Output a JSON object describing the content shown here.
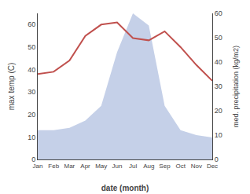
{
  "chart_data": {
    "type": "line",
    "categories": [
      "Jan",
      "Feb",
      "Mar",
      "Apr",
      "May",
      "Jun",
      "Jul",
      "Aug",
      "Sep",
      "Oct",
      "Nov",
      "Dec"
    ],
    "xlabel": "date (month)",
    "ylabel": "max temp (C)",
    "y2label": "med. precipitation (kg/m2)",
    "series": [
      {
        "type": "area",
        "axis": "y2",
        "color": "#c5d0e8",
        "values": [
          12,
          12,
          13,
          16,
          22,
          44,
          60,
          55,
          22,
          12,
          10,
          9
        ]
      },
      {
        "type": "line",
        "color": "#c0504d",
        "values": [
          38,
          39,
          44,
          55,
          60,
          61,
          54,
          53,
          57,
          50,
          42,
          35
        ]
      }
    ],
    "ylim": [
      0,
      65
    ],
    "yticks": [
      0,
      10,
      20,
      30,
      40,
      50,
      60
    ],
    "y2lim": [
      0,
      60
    ],
    "y2ticks": [
      0,
      10,
      20,
      30,
      40,
      50,
      60
    ],
    "grid": false
  }
}
